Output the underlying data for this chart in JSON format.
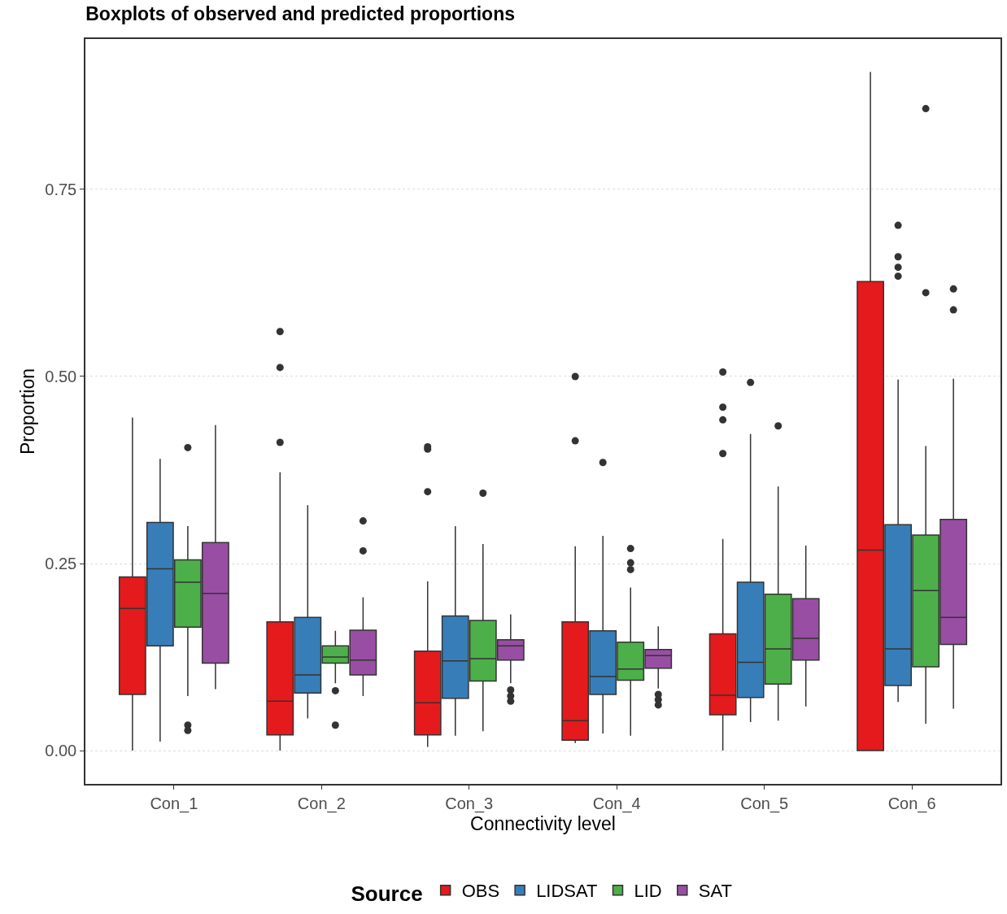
{
  "chart_data": {
    "type": "box",
    "title": "Boxplots of observed and predicted proportions",
    "xlabel": "Connectivity level",
    "ylabel": "Proportion",
    "legend_title": "Source",
    "categories": [
      "Con_1",
      "Con_2",
      "Con_3",
      "Con_4",
      "Con_5",
      "Con_6"
    ],
    "ylim": [
      -0.0445,
      0.951
    ],
    "yticks": [
      {
        "value": 0,
        "label": "0.00"
      },
      {
        "value": 0.25,
        "label": "0.25"
      },
      {
        "value": 0.5,
        "label": "0.50"
      },
      {
        "value": 0.75,
        "label": "0.75"
      }
    ],
    "grid": "y",
    "legend": "bottom",
    "series": [
      {
        "name": "OBS",
        "color": "#e41a1c",
        "boxes": [
          {
            "low": 0,
            "q1": 0.075,
            "median": 0.19,
            "q3": 0.232,
            "high": 0.445
          },
          {
            "low": 0,
            "q1": 0.021,
            "median": 0.066,
            "q3": 0.172,
            "high": 0.372,
            "outliers": [
              0.56,
              0.512,
              0.412
            ]
          },
          {
            "low": 0.005,
            "q1": 0.021,
            "median": 0.064,
            "q3": 0.133,
            "high": 0.226,
            "outliers": [
              0.406,
              0.403,
              0.346
            ]
          },
          {
            "low": 0.01,
            "q1": 0.014,
            "median": 0.04,
            "q3": 0.172,
            "high": 0.273,
            "outliers": [
              0.5,
              0.414
            ]
          },
          {
            "low": 0,
            "q1": 0.048,
            "median": 0.074,
            "q3": 0.156,
            "high": 0.283,
            "outliers": [
              0.506,
              0.459,
              0.442,
              0.397
            ]
          },
          {
            "low": 0,
            "q1": 0,
            "median": 0.268,
            "q3": 0.627,
            "high": 0.907
          }
        ]
      },
      {
        "name": "LIDSAT",
        "color": "#377eb8",
        "boxes": [
          {
            "low": 0.012,
            "q1": 0.14,
            "median": 0.243,
            "q3": 0.305,
            "high": 0.39
          },
          {
            "low": 0.043,
            "q1": 0.077,
            "median": 0.101,
            "q3": 0.178,
            "high": 0.328
          },
          {
            "low": 0.02,
            "q1": 0.07,
            "median": 0.12,
            "q3": 0.18,
            "high": 0.3
          },
          {
            "low": 0.023,
            "q1": 0.075,
            "median": 0.099,
            "q3": 0.16,
            "high": 0.287,
            "outliers": [
              0.385
            ]
          },
          {
            "low": 0.038,
            "q1": 0.071,
            "median": 0.118,
            "q3": 0.225,
            "high": 0.423,
            "outliers": [
              0.492
            ]
          },
          {
            "low": 0.065,
            "q1": 0.087,
            "median": 0.136,
            "q3": 0.302,
            "high": 0.496,
            "outliers": [
              0.702,
              0.66,
              0.646,
              0.634
            ]
          }
        ]
      },
      {
        "name": "LID",
        "color": "#4daf4a",
        "boxes": [
          {
            "low": 0.073,
            "q1": 0.165,
            "median": 0.225,
            "q3": 0.255,
            "high": 0.3,
            "outliers": [
              0.405,
              0.034,
              0.027
            ]
          },
          {
            "low": 0.09,
            "q1": 0.117,
            "median": 0.125,
            "q3": 0.14,
            "high": 0.16,
            "outliers": [
              0.08,
              0.034
            ]
          },
          {
            "low": 0.026,
            "q1": 0.093,
            "median": 0.123,
            "q3": 0.174,
            "high": 0.276,
            "outliers": [
              0.344
            ]
          },
          {
            "low": 0.02,
            "q1": 0.094,
            "median": 0.109,
            "q3": 0.145,
            "high": 0.218,
            "outliers": [
              0.27,
              0.251,
              0.242
            ]
          },
          {
            "low": 0.04,
            "q1": 0.089,
            "median": 0.136,
            "q3": 0.209,
            "high": 0.353,
            "outliers": [
              0.434
            ]
          },
          {
            "low": 0.036,
            "q1": 0.112,
            "median": 0.214,
            "q3": 0.288,
            "high": 0.407,
            "outliers": [
              0.858,
              0.612
            ]
          }
        ]
      },
      {
        "name": "SAT",
        "color": "#984ea3",
        "boxes": [
          {
            "low": 0.082,
            "q1": 0.117,
            "median": 0.21,
            "q3": 0.278,
            "high": 0.435
          },
          {
            "low": 0.073,
            "q1": 0.101,
            "median": 0.121,
            "q3": 0.161,
            "high": 0.205,
            "outliers": [
              0.307,
              0.267
            ]
          },
          {
            "low": 0.09,
            "q1": 0.121,
            "median": 0.14,
            "q3": 0.148,
            "high": 0.182,
            "outliers": [
              0.081,
              0.073,
              0.066
            ]
          },
          {
            "low": 0.083,
            "q1": 0.11,
            "median": 0.127,
            "q3": 0.135,
            "high": 0.166,
            "outliers": [
              0.075,
              0.068,
              0.061
            ]
          },
          {
            "low": 0.059,
            "q1": 0.121,
            "median": 0.15,
            "q3": 0.203,
            "high": 0.274
          },
          {
            "low": 0.056,
            "q1": 0.142,
            "median": 0.178,
            "q3": 0.309,
            "high": 0.497,
            "outliers": [
              0.617,
              0.589
            ]
          }
        ]
      }
    ]
  }
}
